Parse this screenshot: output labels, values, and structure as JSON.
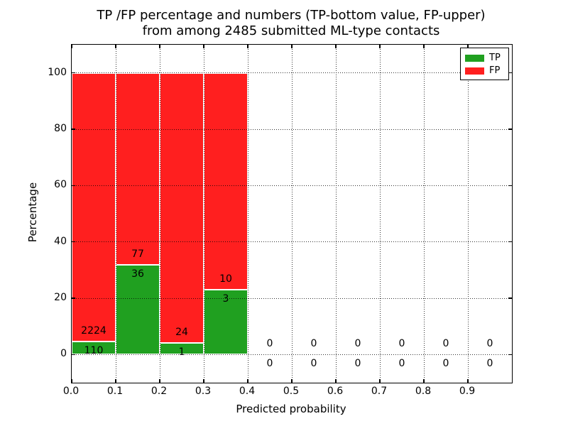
{
  "figure": {
    "title_line1": "TP /FP percentage and numbers (TP-bottom value, FP-upper)",
    "title_line2": "from among 2485 submitted ML-type contacts",
    "background": "#ffffff"
  },
  "chart_data": {
    "type": "bar",
    "stacked": true,
    "title": "TP /FP percentage and numbers (TP-bottom value, FP-upper)\nfrom among 2485 submitted ML-type contacts",
    "xlabel": "Predicted probability",
    "ylabel": "Percentage",
    "total_contacts": 2485,
    "xlim": [
      0.0,
      1.0
    ],
    "ylim": [
      -10,
      110
    ],
    "grid": {
      "style": "dotted",
      "color": "#000000",
      "drawn_above_bars": true
    },
    "legend": {
      "position": "upper right",
      "entries": [
        {
          "label": "TP",
          "color_key": "tp"
        },
        {
          "label": "FP",
          "color_key": "fp"
        }
      ]
    },
    "colors": {
      "tp": "#20a020",
      "fp": "#ff1f1f",
      "bar_edge": "#ffffff",
      "axis": "#000000"
    },
    "xticks": [
      {
        "v": 0.0,
        "label": "0.0"
      },
      {
        "v": 0.1,
        "label": "0.1"
      },
      {
        "v": 0.2,
        "label": "0.2"
      },
      {
        "v": 0.3,
        "label": "0.3"
      },
      {
        "v": 0.4,
        "label": "0.4"
      },
      {
        "v": 0.5,
        "label": "0.5"
      },
      {
        "v": 0.6,
        "label": "0.6"
      },
      {
        "v": 0.7,
        "label": "0.7"
      },
      {
        "v": 0.8,
        "label": "0.8"
      },
      {
        "v": 0.9,
        "label": "0.9"
      }
    ],
    "yticks": [
      {
        "v": 0,
        "label": "0"
      },
      {
        "v": 20,
        "label": "20"
      },
      {
        "v": 40,
        "label": "40"
      },
      {
        "v": 60,
        "label": "60"
      },
      {
        "v": 80,
        "label": "80"
      },
      {
        "v": 100,
        "label": "100"
      }
    ],
    "bars": [
      {
        "bin": "0.0-0.1",
        "x0": 0.0,
        "x1": 0.1,
        "tp_count": 110,
        "fp_count": 2224,
        "tp_pct": 4.71,
        "fp_pct": 95.29
      },
      {
        "bin": "0.1-0.2",
        "x0": 0.1,
        "x1": 0.2,
        "tp_count": 36,
        "fp_count": 77,
        "tp_pct": 31.86,
        "fp_pct": 68.14
      },
      {
        "bin": "0.2-0.3",
        "x0": 0.2,
        "x1": 0.3,
        "tp_count": 1,
        "fp_count": 24,
        "tp_pct": 4.0,
        "fp_pct": 96.0
      },
      {
        "bin": "0.3-0.4",
        "x0": 0.3,
        "x1": 0.4,
        "tp_count": 3,
        "fp_count": 10,
        "tp_pct": 23.08,
        "fp_pct": 76.92
      }
    ],
    "empty_bins": [
      {
        "center": 0.45,
        "tp_count": 0,
        "fp_count": 0
      },
      {
        "center": 0.55,
        "tp_count": 0,
        "fp_count": 0
      },
      {
        "center": 0.65,
        "tp_count": 0,
        "fp_count": 0
      },
      {
        "center": 0.75,
        "tp_count": 0,
        "fp_count": 0
      },
      {
        "center": 0.85,
        "tp_count": 0,
        "fp_count": 0
      },
      {
        "center": 0.95,
        "tp_count": 0,
        "fp_count": 0
      }
    ]
  }
}
